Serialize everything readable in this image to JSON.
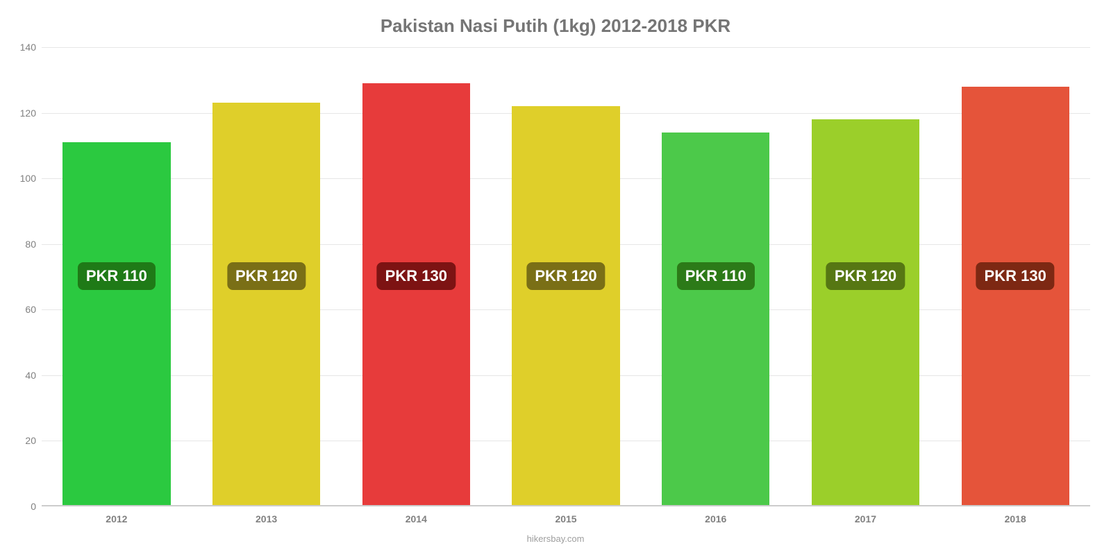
{
  "chart": {
    "type": "bar",
    "title": "Pakistan Nasi Putih (1kg) 2012-2018 PKR",
    "title_color": "#757575",
    "title_fontsize": 26,
    "background_color": "#ffffff",
    "grid_color": "#e6e6e6",
    "axis_label_color": "#808080",
    "axis_label_fontsize": 14,
    "ylim": [
      0,
      140
    ],
    "ytick_step": 20,
    "yticks": [
      0,
      20,
      40,
      60,
      80,
      100,
      120,
      140
    ],
    "bar_width_pct": 72,
    "badge_fontsize": 22,
    "badge_text_color": "#ffffff",
    "badge_y_value": 66,
    "categories": [
      "2012",
      "2013",
      "2014",
      "2015",
      "2016",
      "2017",
      "2018"
    ],
    "bars": [
      {
        "year": "2012",
        "value": 111,
        "label": "PKR 110",
        "fill": "#2bc940",
        "badge_bg": "#1f7a17"
      },
      {
        "year": "2013",
        "value": 123,
        "label": "PKR 120",
        "fill": "#dfcf2a",
        "badge_bg": "#7a6f16"
      },
      {
        "year": "2014",
        "value": 129,
        "label": "PKR 130",
        "fill": "#e73b3b",
        "badge_bg": "#7d1313"
      },
      {
        "year": "2015",
        "value": 122,
        "label": "PKR 120",
        "fill": "#dfcf2a",
        "badge_bg": "#7a6f16"
      },
      {
        "year": "2016",
        "value": 114,
        "label": "PKR 110",
        "fill": "#4cc94a",
        "badge_bg": "#2c7a18"
      },
      {
        "year": "2017",
        "value": 118,
        "label": "PKR 120",
        "fill": "#9bcf2a",
        "badge_bg": "#567713"
      },
      {
        "year": "2018",
        "value": 128,
        "label": "PKR 130",
        "fill": "#e5543a",
        "badge_bg": "#7d2813"
      }
    ],
    "attribution": "hikersbay.com",
    "attribution_color": "#9e9e9e",
    "attribution_fontsize": 13
  }
}
